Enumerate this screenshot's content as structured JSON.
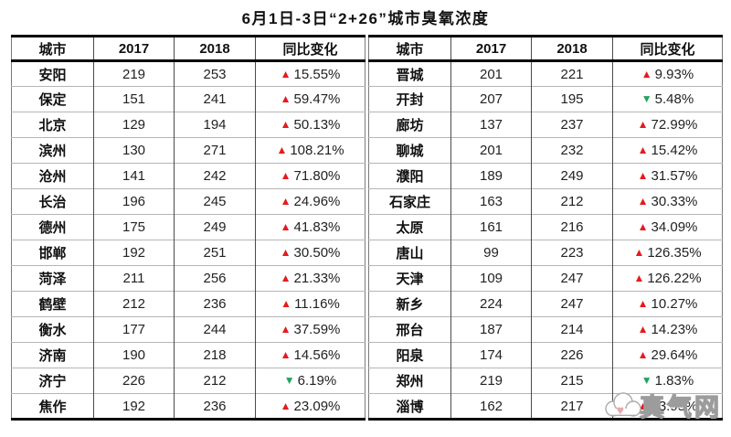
{
  "colors": {
    "up_red": "#e8191c",
    "down_green": "#22a35c"
  },
  "icons": {
    "up": "▲",
    "down": "▼"
  },
  "watermark": {
    "text": "真气网"
  },
  "chart_data": {
    "type": "table",
    "title": "6月1日-3日“2+26”城市臭氧浓度",
    "columns": [
      "城市",
      "2017",
      "2018",
      "同比变化"
    ],
    "tables": [
      {
        "rows": [
          {
            "city": "安阳",
            "v2017": "219",
            "v2018": "253",
            "change": "15.55%",
            "direction": "up"
          },
          {
            "city": "保定",
            "v2017": "151",
            "v2018": "241",
            "change": "59.47%",
            "direction": "up"
          },
          {
            "city": "北京",
            "v2017": "129",
            "v2018": "194",
            "change": "50.13%",
            "direction": "up"
          },
          {
            "city": "滨州",
            "v2017": "130",
            "v2018": "271",
            "change": "108.21%",
            "direction": "up"
          },
          {
            "city": "沧州",
            "v2017": "141",
            "v2018": "242",
            "change": "71.80%",
            "direction": "up"
          },
          {
            "city": "长治",
            "v2017": "196",
            "v2018": "245",
            "change": "24.96%",
            "direction": "up"
          },
          {
            "city": "德州",
            "v2017": "175",
            "v2018": "249",
            "change": "41.83%",
            "direction": "up"
          },
          {
            "city": "邯郸",
            "v2017": "192",
            "v2018": "251",
            "change": "30.50%",
            "direction": "up"
          },
          {
            "city": "菏泽",
            "v2017": "211",
            "v2018": "256",
            "change": "21.33%",
            "direction": "up"
          },
          {
            "city": "鹤壁",
            "v2017": "212",
            "v2018": "236",
            "change": "11.16%",
            "direction": "up"
          },
          {
            "city": "衡水",
            "v2017": "177",
            "v2018": "244",
            "change": "37.59%",
            "direction": "up"
          },
          {
            "city": "济南",
            "v2017": "190",
            "v2018": "218",
            "change": "14.56%",
            "direction": "up"
          },
          {
            "city": "济宁",
            "v2017": "226",
            "v2018": "212",
            "change": "6.19%",
            "direction": "down"
          },
          {
            "city": "焦作",
            "v2017": "192",
            "v2018": "236",
            "change": "23.09%",
            "direction": "up"
          }
        ]
      },
      {
        "rows": [
          {
            "city": "晋城",
            "v2017": "201",
            "v2018": "221",
            "change": "9.93%",
            "direction": "up"
          },
          {
            "city": "开封",
            "v2017": "207",
            "v2018": "195",
            "change": "5.48%",
            "direction": "down"
          },
          {
            "city": "廊坊",
            "v2017": "137",
            "v2018": "237",
            "change": "72.99%",
            "direction": "up"
          },
          {
            "city": "聊城",
            "v2017": "201",
            "v2018": "232",
            "change": "15.42%",
            "direction": "up"
          },
          {
            "city": "濮阳",
            "v2017": "189",
            "v2018": "249",
            "change": "31.57%",
            "direction": "up"
          },
          {
            "city": "石家庄",
            "v2017": "163",
            "v2018": "212",
            "change": "30.33%",
            "direction": "up"
          },
          {
            "city": "太原",
            "v2017": "161",
            "v2018": "216",
            "change": "34.09%",
            "direction": "up"
          },
          {
            "city": "唐山",
            "v2017": "99",
            "v2018": "223",
            "change": "126.35%",
            "direction": "up"
          },
          {
            "city": "天津",
            "v2017": "109",
            "v2018": "247",
            "change": "126.22%",
            "direction": "up"
          },
          {
            "city": "新乡",
            "v2017": "224",
            "v2018": "247",
            "change": "10.27%",
            "direction": "up"
          },
          {
            "city": "邢台",
            "v2017": "187",
            "v2018": "214",
            "change": "14.23%",
            "direction": "up"
          },
          {
            "city": "阳泉",
            "v2017": "174",
            "v2018": "226",
            "change": "29.64%",
            "direction": "up"
          },
          {
            "city": "郑州",
            "v2017": "219",
            "v2018": "215",
            "change": "1.83%",
            "direction": "down"
          },
          {
            "city": "淄博",
            "v2017": "162",
            "v2018": "217",
            "change": "33.95%",
            "direction": "up"
          }
        ]
      }
    ]
  }
}
